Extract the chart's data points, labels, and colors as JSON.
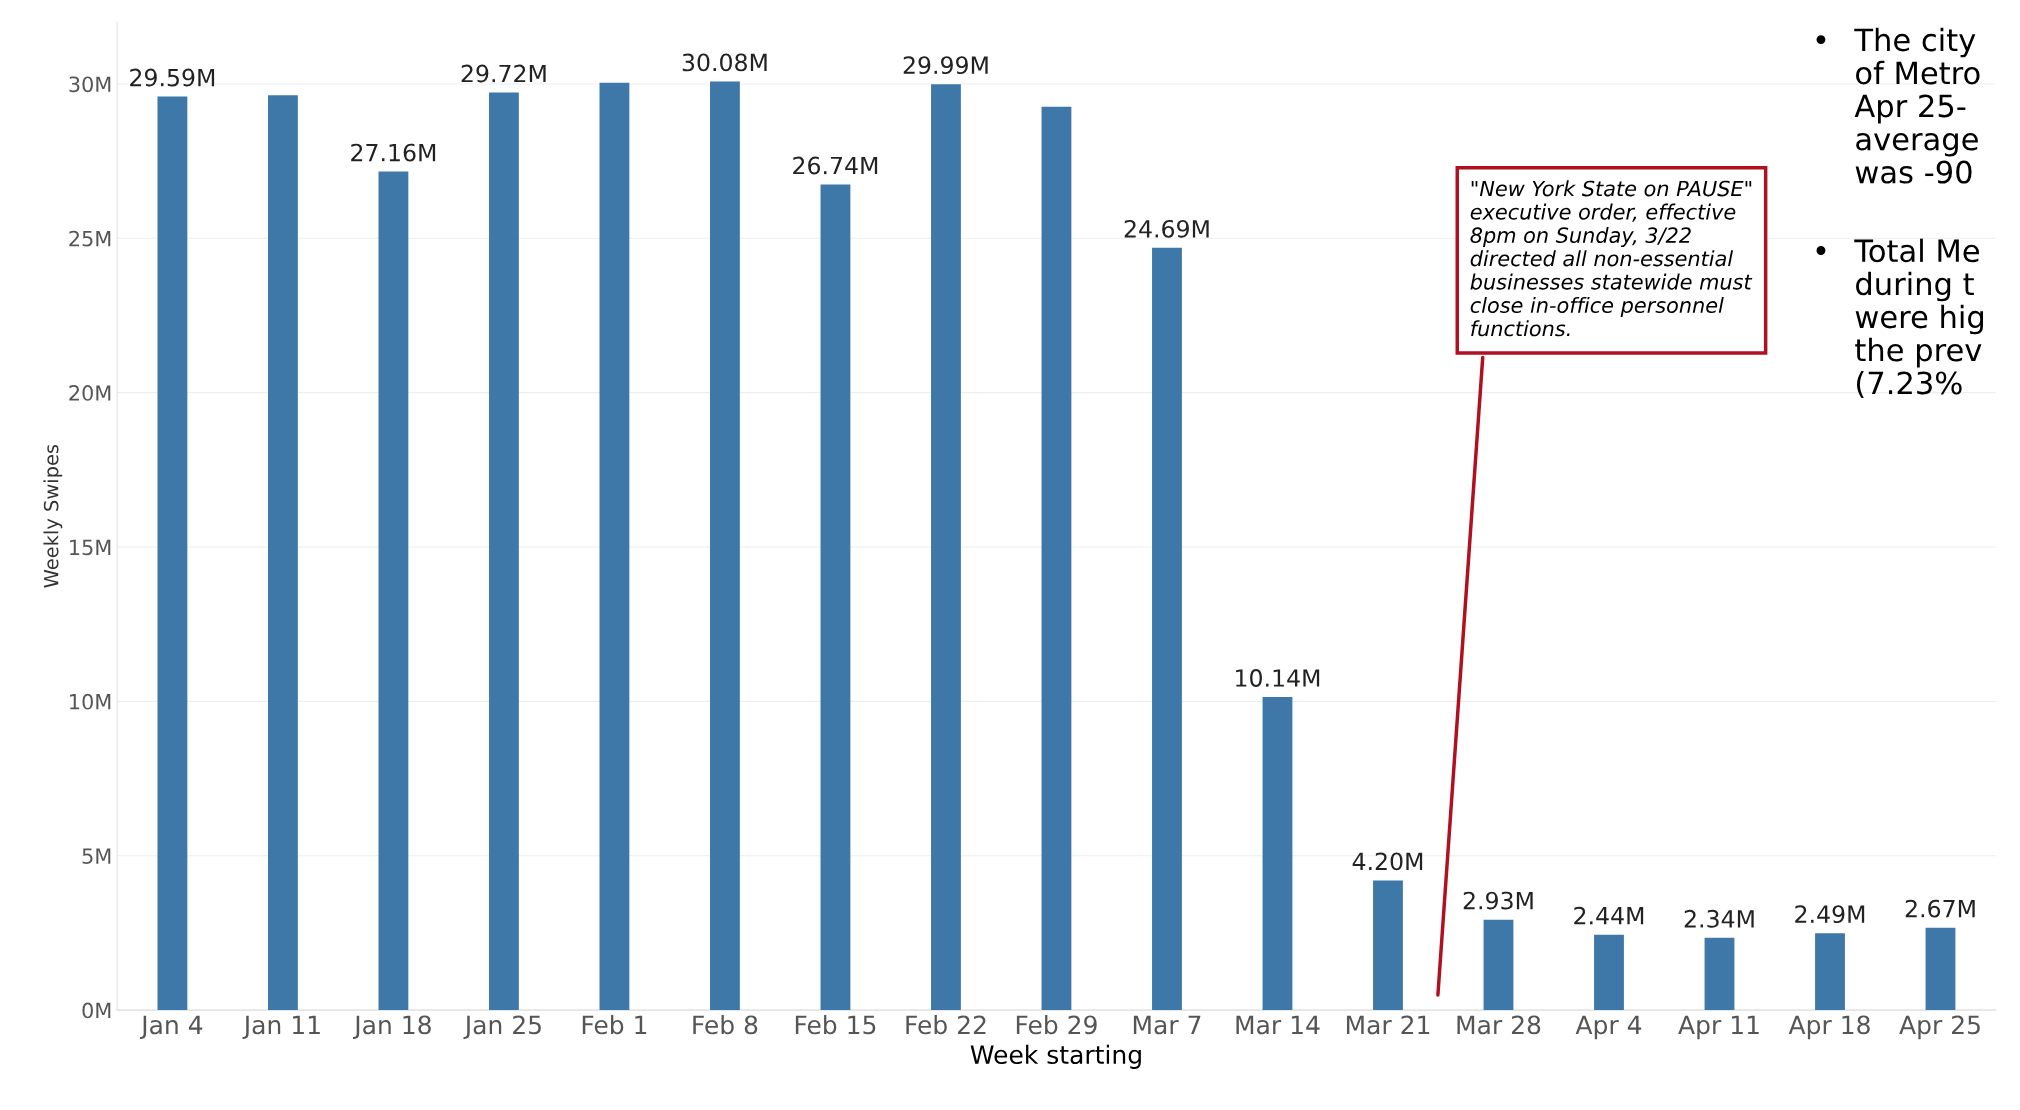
{
  "chart_data": {
    "type": "bar",
    "xlabel": "Week starting",
    "ylabel": "Weekly Swipes",
    "categories": [
      "Jan 4",
      "Jan 11",
      "Jan 18",
      "Jan 25",
      "Feb 1",
      "Feb 8",
      "Feb 15",
      "Feb 22",
      "Feb 29",
      "Mar 7",
      "Mar 14",
      "Mar 21",
      "Mar 28",
      "Apr 4",
      "Apr 11",
      "Apr 18",
      "Apr 25"
    ],
    "values": [
      29.59,
      29.63,
      27.16,
      29.72,
      30.04,
      30.08,
      26.74,
      29.99,
      29.26,
      24.69,
      10.14,
      4.2,
      2.93,
      2.44,
      2.34,
      2.49,
      2.67
    ],
    "value_labels": [
      "29.59M",
      null,
      "27.16M",
      "29.72M",
      null,
      "30.08M",
      "26.74M",
      "29.99M",
      null,
      "24.69M",
      "10.14M",
      "4.20M",
      "2.93M",
      "2.44M",
      "2.34M",
      "2.49M",
      "2.67M"
    ],
    "color": "#3e78a8",
    "ylim": [
      0,
      32
    ],
    "yticks": [
      {
        "value": 0,
        "label": "0M"
      },
      {
        "value": 5,
        "label": "5M"
      },
      {
        "value": 10,
        "label": "10M"
      },
      {
        "value": 15,
        "label": "15M"
      },
      {
        "value": 20,
        "label": "20M"
      },
      {
        "value": 25,
        "label": "25M"
      },
      {
        "value": 30,
        "label": "30M"
      }
    ],
    "grid": "y",
    "annotations": [
      "\"New York State on PAUSE\" executive order, effective 8pm on Sunday, 3/22 directed all non-essential businesses statewide must close in-office personnel functions.",
      "• The city\nof Metro\nApr 25-\naverage\nwas -90",
      "• Total Me\nduring t\nwere hig\nthe prev\n(7.23%"
    ]
  }
}
